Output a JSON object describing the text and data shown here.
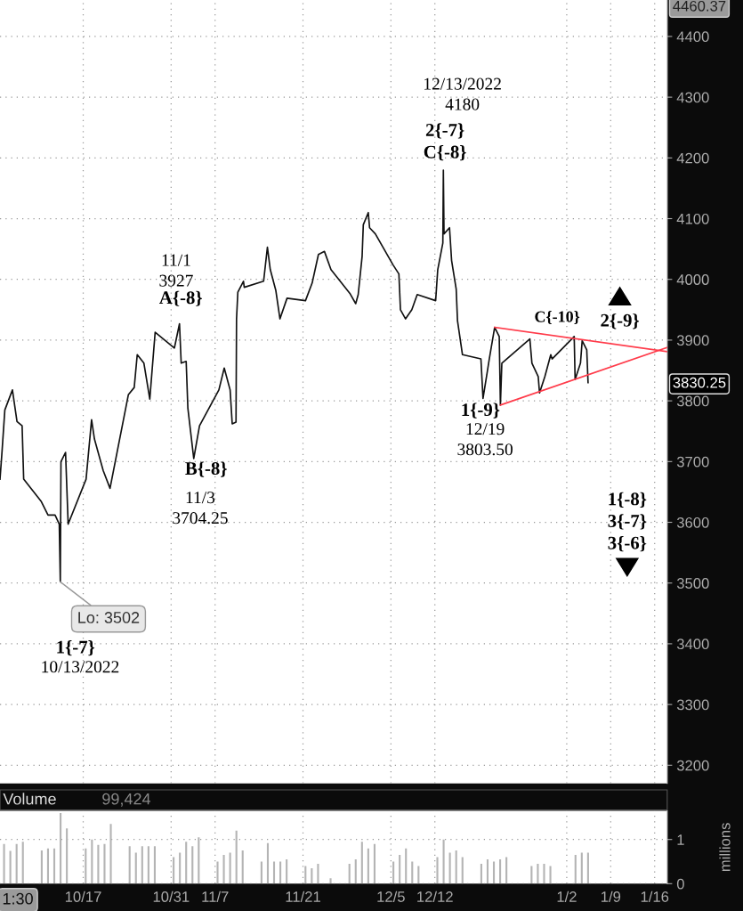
{
  "chart_data": [
    {
      "type": "line",
      "xlim": [
        "2022-10-03T18:00",
        "2023-01-18"
      ],
      "ylim": [
        3170,
        4460
      ],
      "xticks": [
        {
          "value": "2022-10-17",
          "label": null
        },
        {
          "value": "2022-10-31",
          "label": null
        },
        {
          "value": "2022-11-07",
          "label": null
        },
        {
          "value": "2022-11-21",
          "label": null
        },
        {
          "value": "2022-12-05",
          "label": null
        },
        {
          "value": "2022-12-12",
          "label": null
        },
        {
          "value": "2023-01-02",
          "label": null
        },
        {
          "value": "2023-01-09",
          "label": null
        },
        {
          "value": "2023-01-16",
          "label": null
        }
      ],
      "yticks": [
        3200,
        3300,
        3400,
        3500,
        3600,
        3700,
        3800,
        3900,
        4000,
        4100,
        4200,
        4300,
        4400
      ],
      "tick_labels": "y",
      "grid": true,
      "series": [
        {
          "color": "#111111",
          "x": [
            "2022-10-03T18:00",
            "2022-10-04T01:30",
            "2022-10-04T12:30",
            "2022-10-05T17:30",
            "2022-10-06T11:00",
            "2022-10-07T06:30",
            "2022-10-07T12:30",
            "2022-10-10T08:00",
            "2022-10-11T09:30",
            "2022-10-12T12:30",
            "2022-10-13T04:30",
            "2022-10-13T08:30",
            "2022-10-13T11:00",
            "2022-10-14T04:30",
            "2022-10-14T14:30",
            "2022-10-17T11:00",
            "2022-10-18T08:00",
            "2022-10-18T19:00",
            "2022-10-20T04:30",
            "2022-10-21T06:30",
            "2022-10-24T04:30",
            "2022-10-25T03:00",
            "2022-10-25T14:30",
            "2022-10-26T16:00",
            "2022-10-27T14:30",
            "2022-10-28T11:00",
            "2022-10-31T12:30",
            "2022-11-01T08:00",
            "2022-11-01T14:30",
            "2022-11-02T09:30",
            "2022-11-02T16:00",
            "2022-11-03T14:30",
            "2022-11-04T12:30",
            "2022-11-07T14:30",
            "2022-11-08T11:00",
            "2022-11-09T09:30",
            "2022-11-09T17:30",
            "2022-11-10T08:00",
            "2022-11-10T10:00",
            "2022-11-10T15:00",
            "2022-11-11T12:30",
            "2022-11-11T15:30",
            "2022-11-14T17:30",
            "2022-11-15T08:00",
            "2022-11-15T19:00",
            "2022-11-16T16:00",
            "2022-11-17T08:00",
            "2022-11-18T11:00",
            "2022-11-21T09:30",
            "2022-11-22T11:00",
            "2022-11-23T11:00",
            "2022-11-24T10:00",
            "2022-11-25T11:00",
            "2022-11-28T12:30",
            "2022-11-29T09:30",
            "2022-11-29T19:00",
            "2022-11-30T10:00",
            "2022-11-30T14:30",
            "2022-12-01T09:30",
            "2022-12-01T14:30",
            "2022-12-02T12:30",
            "2022-12-05T08:00",
            "2022-12-06T06:30",
            "2022-12-06T12:30",
            "2022-12-07T08:00",
            "2022-12-08T08:00",
            "2022-12-09T04:30",
            "2022-12-12T03:00",
            "2022-12-12T11:00",
            "2022-12-13T06:30",
            "2022-12-13T08:30",
            "2022-12-13T11:00",
            "2022-12-14T08:00",
            "2022-12-14T16:00",
            "2022-12-15T09:30",
            "2022-12-15T14:30",
            "2022-12-16T09:30",
            "2022-12-19T08:00",
            "2022-12-19T16:00",
            "2022-12-20T08:00",
            "2022-12-20T16:00",
            "2022-12-21T12:30",
            "2022-12-22T06:00",
            "2022-12-22T10:30",
            "2022-12-22T16:00",
            "2022-12-27T03:00",
            "2022-12-27T11:00",
            "2022-12-28T11:00",
            "2022-12-28T16:00",
            "2022-12-29T12:30",
            "2022-12-30T11:00",
            "2022-12-30T16:00",
            "2023-01-03T04:30",
            "2023-01-03T08:00",
            "2023-01-04T04:30",
            "2023-01-04T11:00",
            "2023-01-05T04:30",
            "2023-01-05T09:30"
          ],
          "values": [
            3671,
            3715,
            3785,
            3818,
            3766,
            3759,
            3671,
            3634,
            3612,
            3612,
            3597,
            3502,
            3700,
            3715,
            3597,
            3671,
            3769,
            3737,
            3685,
            3656,
            3810,
            3822,
            3876,
            3862,
            3803,
            3913,
            3887,
            3927,
            3862,
            3865,
            3788,
            3705,
            3759,
            3818,
            3854,
            3818,
            3762,
            3765,
            3935,
            3979,
            3997,
            3987,
            3997,
            4053,
            4016,
            3982,
            3935,
            3969,
            3965,
            3994,
            4041,
            4046,
            4016,
            3976,
            3960,
            3975,
            4038,
            4090,
            4110,
            4085,
            4075,
            4024,
            4009,
            3950,
            3935,
            3950,
            3975,
            3965,
            4016,
            4060,
            4180,
            4075,
            4085,
            4031,
            3984,
            3932,
            3876,
            3869,
            3804,
            3847,
            3869,
            3921,
            3906,
            3793,
            3862,
            3902,
            3862,
            3840,
            3813,
            3840,
            3876,
            3869,
            3906,
            3835,
            3862,
            3899,
            3884,
            3830
          ]
        },
        {
          "type": "line",
          "color": "#ff3b4a",
          "x": [
            "2022-12-21T12:30",
            "2023-01-18"
          ],
          "values": [
            3921,
            3881
          ]
        },
        {
          "type": "line",
          "color": "#ff3b4a",
          "x": [
            "2022-12-22T10:30",
            "2023-01-18"
          ],
          "values": [
            3793,
            3888
          ]
        }
      ],
      "annotations": [
        "12/13/2022\n4180",
        "2{-7}\nC{-8}",
        "11/1\n3927",
        "A{-8}",
        "B{-8}",
        "11/3\n3704.25",
        {
          "text": "Lo: 3502",
          "x": "2022-10-13T08:30",
          "y": 3502
        },
        "1{-7}",
        "10/13/2022",
        "1{-9}",
        "12/19\n3803.50",
        "C{-10}",
        "2{-9}",
        "1{-8}\n3{-7}\n3{-6}",
        "3830.25",
        "4460.37"
      ]
    },
    {
      "type": "bar",
      "xlim": [
        "2022-10-03T18:00",
        "2023-01-18"
      ],
      "ylim": [
        0,
        1.65
      ],
      "xticks": [
        {
          "value": "2022-10-17",
          "label": "10/17"
        },
        {
          "value": "2022-10-31",
          "label": "10/31"
        },
        {
          "value": "2022-11-07",
          "label": "11/7"
        },
        {
          "value": "2022-11-21",
          "label": "11/21"
        },
        {
          "value": "2022-12-05",
          "label": "12/5"
        },
        {
          "value": "2022-12-12",
          "label": "12/12"
        },
        {
          "value": "2023-01-02",
          "label": "1/2"
        },
        {
          "value": "2023-01-09",
          "label": "1/9"
        },
        {
          "value": "2023-01-16",
          "label": "1/16"
        }
      ],
      "yticks": [
        0,
        1
      ],
      "ylabel": "millions",
      "grid": true,
      "color": "#b4b4b4",
      "x": [
        "2022-10-04T09:30",
        "2022-10-05T09:30",
        "2022-10-06T09:30",
        "2022-10-07T09:30",
        "2022-10-10T09:30",
        "2022-10-11T09:30",
        "2022-10-12T09:30",
        "2022-10-13T09:30",
        "2022-10-14T09:30",
        "2022-10-17T09:30",
        "2022-10-18T09:30",
        "2022-10-19T09:30",
        "2022-10-20T09:30",
        "2022-10-21T09:30",
        "2022-10-24T09:30",
        "2022-10-25T09:30",
        "2022-10-26T09:30",
        "2022-10-27T09:30",
        "2022-10-28T09:30",
        "2022-10-31T09:30",
        "2022-11-01T09:30",
        "2022-11-02T09:30",
        "2022-11-03T09:30",
        "2022-11-04T09:30",
        "2022-11-07T09:30",
        "2022-11-08T09:30",
        "2022-11-09T09:30",
        "2022-11-10T09:30",
        "2022-11-11T09:30",
        "2022-11-14T09:30",
        "2022-11-15T09:30",
        "2022-11-16T09:30",
        "2022-11-17T09:30",
        "2022-11-18T09:30",
        "2022-11-21T09:30",
        "2022-11-22T09:30",
        "2022-11-23T09:30",
        "2022-11-25T09:30",
        "2022-11-28T09:30",
        "2022-11-29T09:30",
        "2022-11-30T09:30",
        "2022-12-01T09:30",
        "2022-12-02T09:30",
        "2022-12-05T09:30",
        "2022-12-06T09:30",
        "2022-12-07T09:30",
        "2022-12-08T09:30",
        "2022-12-09T09:30",
        "2022-12-12T09:30",
        "2022-12-13T09:30",
        "2022-12-14T09:30",
        "2022-12-15T09:30",
        "2022-12-16T09:30",
        "2022-12-19T09:30",
        "2022-12-20T09:30",
        "2022-12-21T09:30",
        "2022-12-22T09:30",
        "2022-12-23T09:30",
        "2022-12-27T09:30",
        "2022-12-28T09:30",
        "2022-12-29T09:30",
        "2022-12-30T09:30",
        "2023-01-03T09:30",
        "2023-01-04T09:30",
        "2023-01-05T09:30"
      ],
      "values": [
        0.9,
        0.74,
        0.9,
        0.95,
        0.75,
        0.8,
        0.8,
        1.6,
        1.25,
        0.8,
        1.0,
        0.88,
        0.9,
        1.35,
        0.85,
        0.7,
        0.85,
        0.85,
        0.85,
        0.6,
        0.7,
        0.95,
        0.85,
        1.05,
        0.5,
        0.65,
        0.7,
        1.2,
        0.75,
        0.5,
        0.92,
        0.5,
        0.5,
        0.55,
        0.4,
        0.35,
        0.45,
        0.12,
        0.45,
        0.55,
        0.95,
        0.8,
        0.9,
        0.5,
        0.65,
        0.8,
        0.5,
        0.4,
        0.6,
        1.0,
        0.7,
        0.75,
        0.6,
        0.45,
        0.55,
        0.5,
        0.55,
        0.6,
        0.4,
        0.45,
        0.45,
        0.4,
        0.65,
        0.7,
        0.7
      ],
      "annotations": [
        "Volume",
        "99,424",
        "1:30"
      ]
    }
  ]
}
